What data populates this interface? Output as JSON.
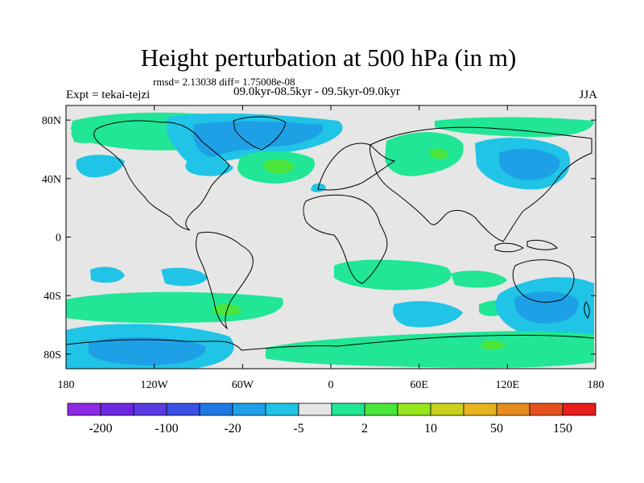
{
  "header": {
    "title": "Height perturbation at 500 hPa (in m)",
    "stats": "rmsd= 2.13038 diff= 1.75008e-08",
    "experiment": "Expt = tekai-tejzi",
    "period": "09.0kyr-08.5kyr - 09.5kyr-09.0kyr",
    "season": "JJA"
  },
  "axes": {
    "lat_ticks": [
      "80N",
      "40N",
      "0",
      "40S",
      "80S"
    ],
    "lat_values": [
      80,
      40,
      0,
      -40,
      -80
    ],
    "lon_ticks": [
      "180",
      "120W",
      "60W",
      "0",
      "60E",
      "120E",
      "180"
    ],
    "lon_values": [
      -180,
      -120,
      -60,
      0,
      60,
      120,
      180
    ],
    "lon_range": [
      -180,
      180
    ],
    "lat_range": [
      -90,
      90
    ]
  },
  "colorbar": {
    "colors": [
      "#8c2ae6",
      "#6e28e0",
      "#5a3ae2",
      "#3c50e6",
      "#1e78e6",
      "#1ea0e6",
      "#20c4e6",
      "#e6e6e6",
      "#20e696",
      "#4ae63c",
      "#96e61e",
      "#c8d21e",
      "#e6b41e",
      "#e68c1e",
      "#e6501e",
      "#e61e1e"
    ],
    "labels": [
      "-200",
      "-100",
      "-20",
      "-5",
      "2",
      "10",
      "50",
      "150"
    ]
  },
  "colors": {
    "background": "#e6e6e6",
    "light_blue": "#20c4e6",
    "mid_blue": "#1ea0e6",
    "dark_blue": "#1e78e6",
    "green": "#20e696",
    "bright_green": "#4ae63c",
    "coast": "#000000"
  }
}
